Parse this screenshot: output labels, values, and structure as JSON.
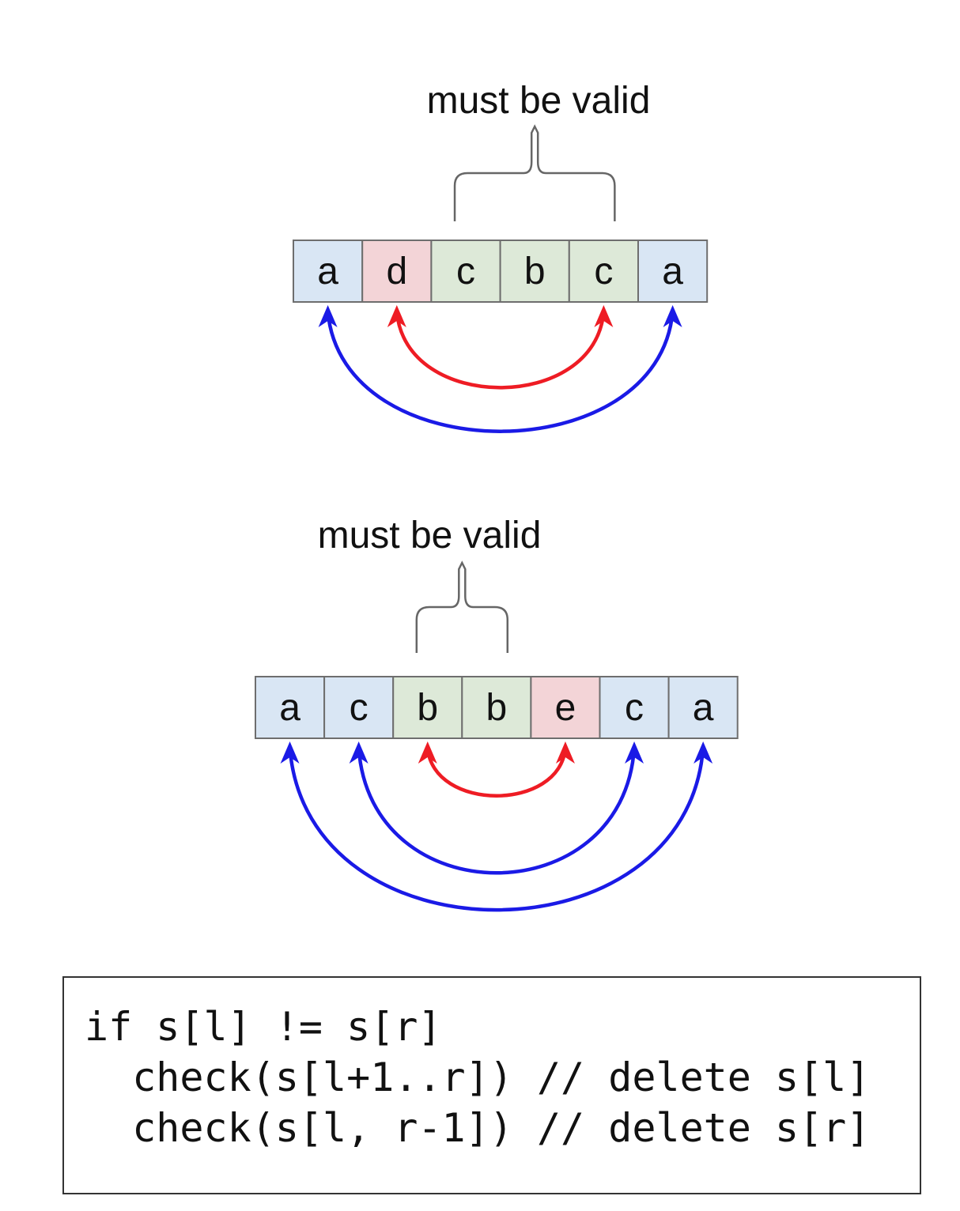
{
  "diagram1": {
    "brace_label": "must be valid",
    "cells": [
      {
        "char": "a",
        "role": "matched"
      },
      {
        "char": "d",
        "role": "mismatch"
      },
      {
        "char": "c",
        "role": "valid"
      },
      {
        "char": "b",
        "role": "valid"
      },
      {
        "char": "c",
        "role": "valid"
      },
      {
        "char": "a",
        "role": "matched"
      }
    ],
    "brace_span": [
      2,
      4
    ],
    "arcs": [
      {
        "from": 0,
        "to": 5,
        "kind": "match"
      },
      {
        "from": 1,
        "to": 4,
        "kind": "mismatch"
      }
    ]
  },
  "diagram2": {
    "brace_label": "must be valid",
    "cells": [
      {
        "char": "a",
        "role": "matched"
      },
      {
        "char": "c",
        "role": "matched"
      },
      {
        "char": "b",
        "role": "valid"
      },
      {
        "char": "b",
        "role": "valid"
      },
      {
        "char": "e",
        "role": "mismatch"
      },
      {
        "char": "c",
        "role": "matched"
      },
      {
        "char": "a",
        "role": "matched"
      }
    ],
    "brace_span": [
      2,
      3
    ],
    "arcs": [
      {
        "from": 0,
        "to": 6,
        "kind": "match"
      },
      {
        "from": 1,
        "to": 5,
        "kind": "match"
      },
      {
        "from": 2,
        "to": 4,
        "kind": "mismatch"
      }
    ]
  },
  "colors": {
    "matched": "#d9e6f4",
    "mismatch": "#f3d4d7",
    "valid": "#dde9d8",
    "match_arc": "#1a1ae6",
    "mismatch_arc": "#ee1c24",
    "brace": "#666666",
    "cell_border": "#6e6e6e"
  },
  "code": {
    "lines": [
      "if s[l] != s[r]",
      "  check(s[l+1..r]) // delete s[l]",
      "  check(s[l, r-1]) // delete s[r]"
    ]
  }
}
